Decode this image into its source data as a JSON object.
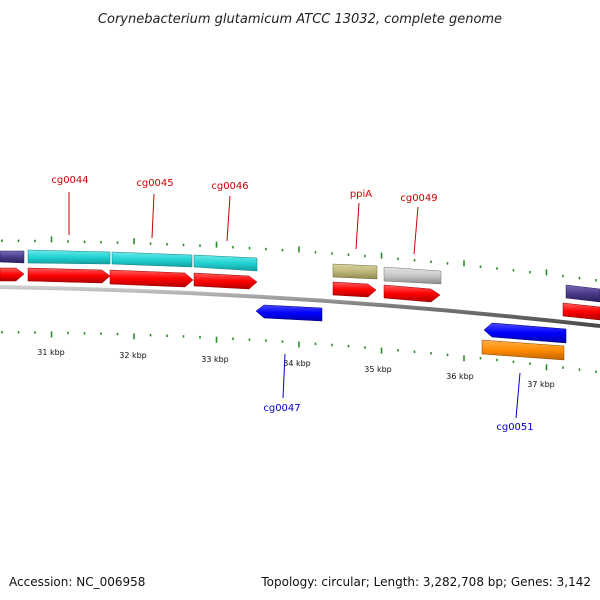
{
  "title": "Corynebacterium glutamicum ATCC 13032, complete genome",
  "footer": {
    "accession": "Accession: NC_006958",
    "info": "Topology: circular; Length: 3,282,708 bp; Genes: 3,142"
  },
  "scale_labels": [
    "31 kbp",
    "32 kbp",
    "33 kbp",
    "34 kbp",
    "35 kbp",
    "36 kbp",
    "37 kbp"
  ],
  "gene_labels_top": [
    "cg0044",
    "cg0045",
    "cg0046",
    "ppiA",
    "cg0049"
  ],
  "gene_labels_bottom": [
    "cg0047",
    "cg0051"
  ],
  "colors": {
    "cds": "#ff0000",
    "forward_cyan": "#22d3d3",
    "reverse_blue": "#0000ff",
    "khaki": "#bfb77a",
    "grey": "#c8c8c8",
    "orange": "#ff8c00",
    "purple": "#4a3a8a",
    "tick": "#2a8a2a",
    "label_top": "#cc0000",
    "label_bottom": "#0000cc"
  }
}
